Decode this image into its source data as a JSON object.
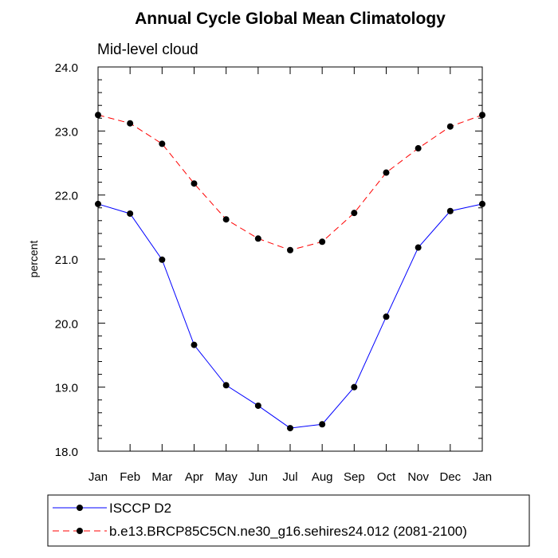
{
  "chart_data": {
    "type": "line",
    "title": "Annual Cycle Global Mean Climatology",
    "subtitle": "Mid-level cloud",
    "ylabel": "percent",
    "xlabel": "",
    "categories": [
      "Jan",
      "Feb",
      "Mar",
      "Apr",
      "May",
      "Jun",
      "Jul",
      "Aug",
      "Sep",
      "Oct",
      "Nov",
      "Dec",
      "Jan"
    ],
    "ylim": [
      18.0,
      24.0
    ],
    "yticks": [
      "18.0",
      "19.0",
      "20.0",
      "21.0",
      "22.0",
      "23.0",
      "24.0"
    ],
    "grid": false,
    "legend_position": "bottom",
    "series": [
      {
        "name": "ISCCP D2",
        "color": "#0000ff",
        "dash": "solid",
        "values": [
          21.86,
          21.71,
          20.99,
          19.66,
          19.03,
          18.71,
          18.36,
          18.42,
          19.0,
          20.1,
          21.18,
          21.75,
          21.86
        ]
      },
      {
        "name": "b.e13.BRCP85C5CN.ne30_g16.sehires24.012 (2081-2100)",
        "color": "#ff0000",
        "dash": "dashed",
        "values": [
          23.25,
          23.12,
          22.8,
          22.18,
          21.62,
          21.32,
          21.14,
          21.27,
          21.72,
          22.35,
          22.73,
          23.07,
          23.25
        ]
      }
    ]
  }
}
